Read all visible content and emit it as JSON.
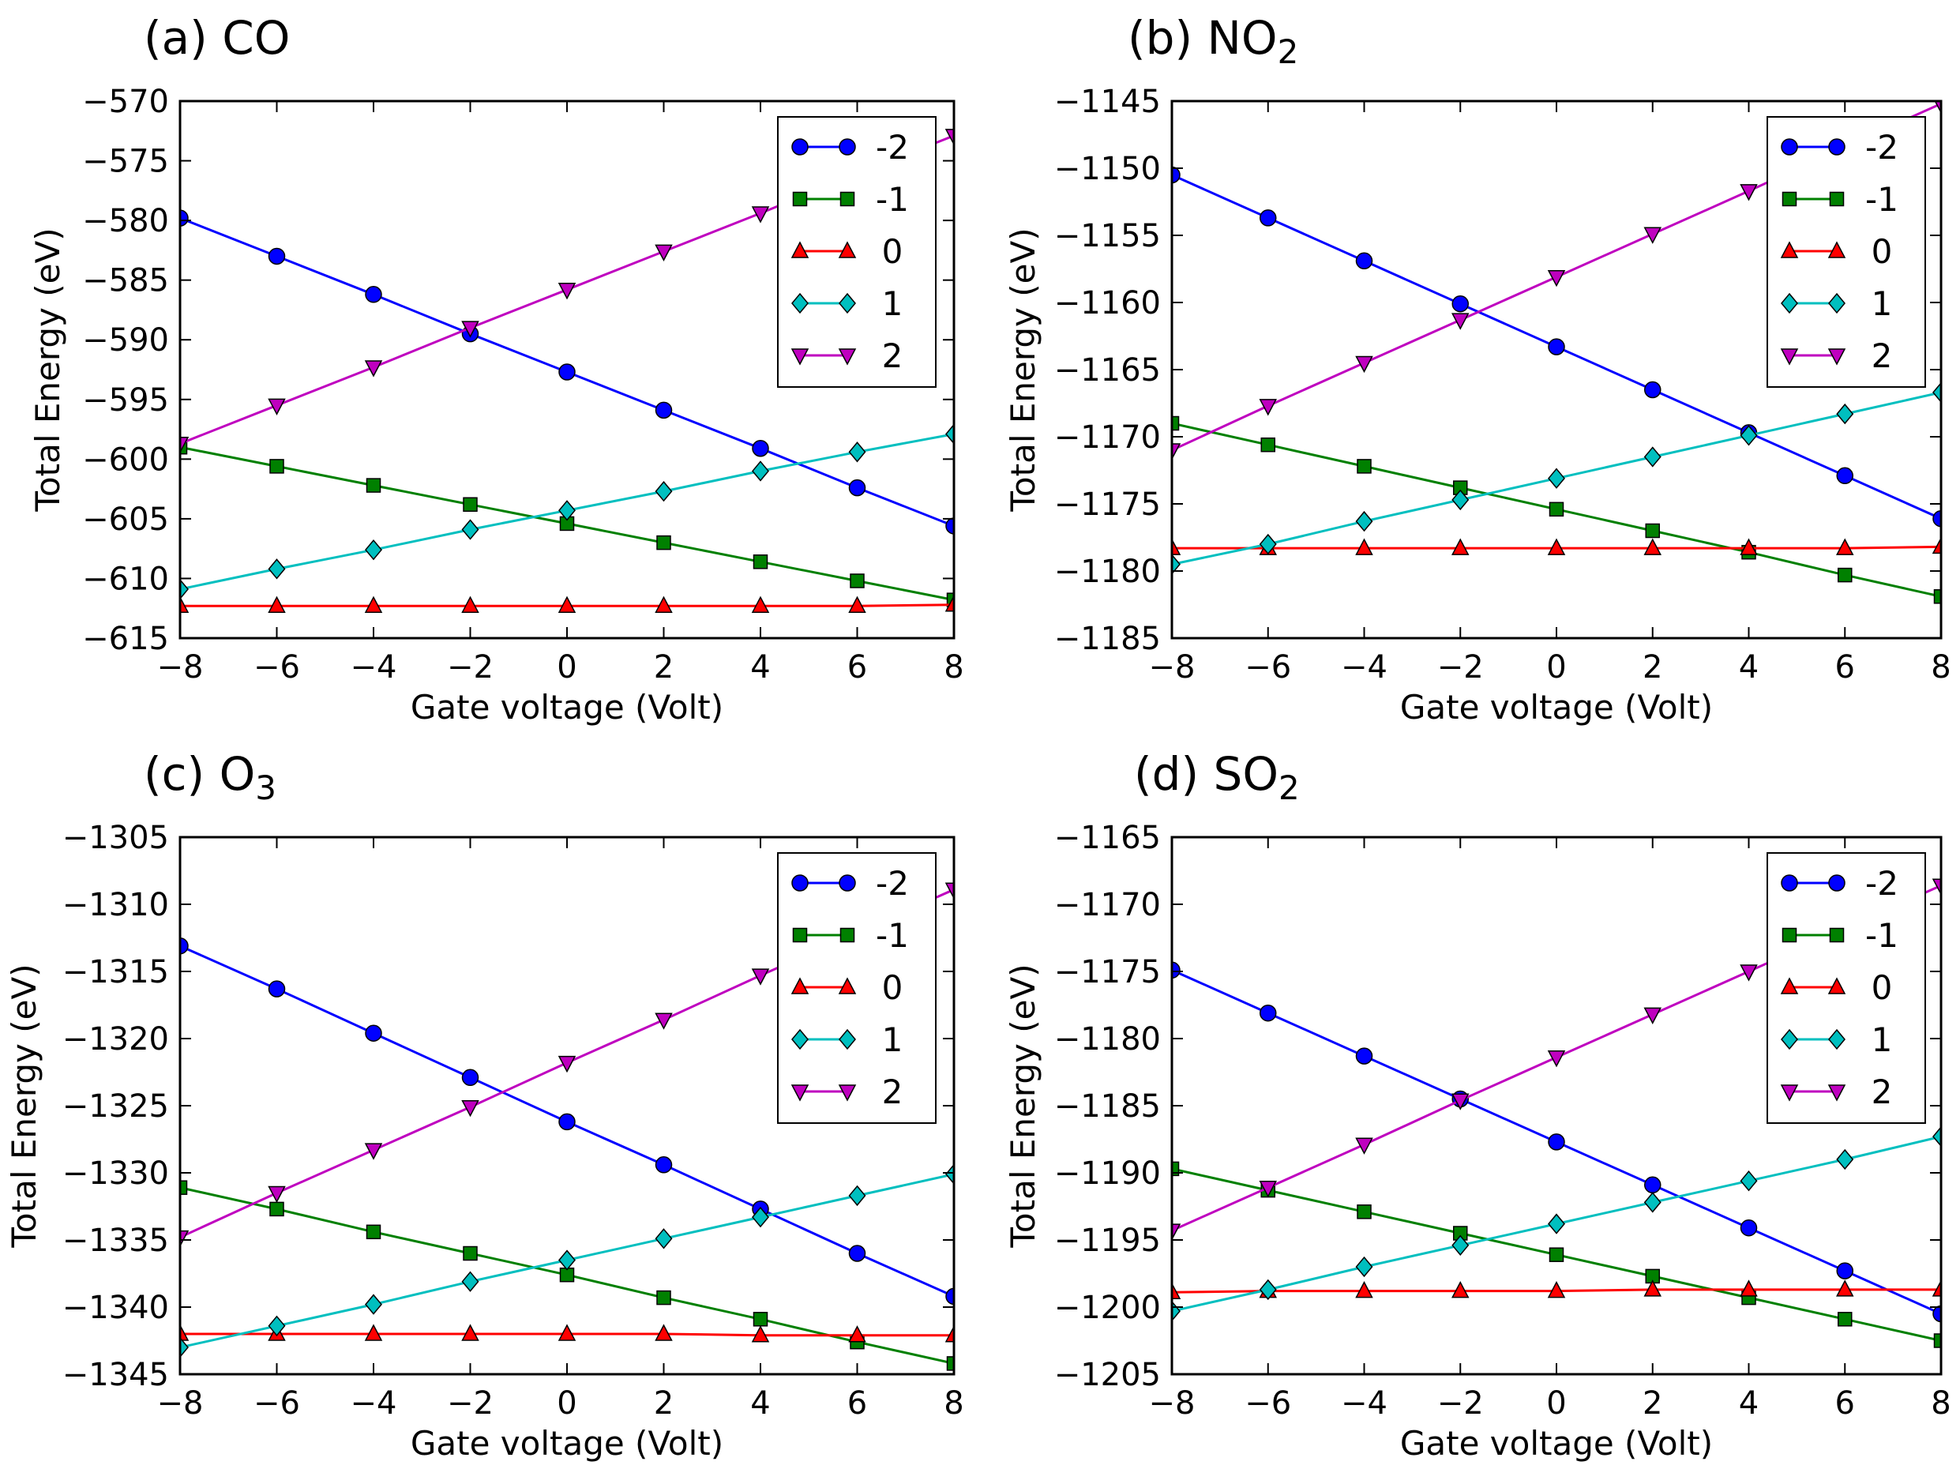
{
  "figure": {
    "x_values": [
      -8,
      -6,
      -4,
      -2,
      0,
      2,
      4,
      6,
      8
    ],
    "series_style": [
      {
        "name": "-2",
        "color": "#0000ff",
        "marker": "circle"
      },
      {
        "name": "-1",
        "color": "#008000",
        "marker": "square"
      },
      {
        "name": "0",
        "color": "#ff0000",
        "marker": "triangle-up"
      },
      {
        "name": "1",
        "color": "#00bfbf",
        "marker": "diamond"
      },
      {
        "name": "2",
        "color": "#bf00bf",
        "marker": "triangle-down"
      }
    ]
  },
  "chart_data": [
    {
      "id": "a",
      "type": "line",
      "title": "(a) CO",
      "title_main": "(a) CO",
      "title_sub": "",
      "xlabel": "Gate voltage (Volt)",
      "ylabel": "Total Energy (eV)",
      "xlim": [
        -8,
        8
      ],
      "ylim": [
        -615,
        -570
      ],
      "xticks": [
        -8,
        -6,
        -4,
        -2,
        0,
        2,
        4,
        6,
        8
      ],
      "yticks": [
        -570,
        -575,
        -580,
        -585,
        -590,
        -595,
        -600,
        -605,
        -610,
        -615
      ],
      "legend": "top-right",
      "x": [
        -8,
        -6,
        -4,
        -2,
        0,
        2,
        4,
        6,
        8
      ],
      "series": [
        {
          "name": "-2",
          "values": [
            -579.8,
            -583.0,
            -586.2,
            -589.5,
            -592.7,
            -595.9,
            -599.1,
            -602.4,
            -605.6
          ]
        },
        {
          "name": "-1",
          "values": [
            -599.0,
            -600.6,
            -602.2,
            -603.8,
            -605.4,
            -607.0,
            -608.6,
            -610.2,
            -611.8
          ]
        },
        {
          "name": "0",
          "values": [
            -612.3,
            -612.3,
            -612.3,
            -612.3,
            -612.3,
            -612.3,
            -612.3,
            -612.3,
            -612.2
          ]
        },
        {
          "name": "1",
          "values": [
            -610.9,
            -609.2,
            -607.6,
            -605.9,
            -604.3,
            -602.7,
            -601.0,
            -599.4,
            -597.9
          ]
        },
        {
          "name": "2",
          "values": [
            -598.7,
            -595.5,
            -592.3,
            -589.0,
            -585.8,
            -582.6,
            -579.4,
            -576.1,
            -572.9
          ]
        }
      ]
    },
    {
      "id": "b",
      "type": "line",
      "title": "(b) NO2",
      "title_main": "(b) NO",
      "title_sub": "2",
      "xlabel": "Gate voltage (Volt)",
      "ylabel": "Total Energy (eV)",
      "xlim": [
        -8,
        8
      ],
      "ylim": [
        -1185,
        -1145
      ],
      "xticks": [
        -8,
        -6,
        -4,
        -2,
        0,
        2,
        4,
        6,
        8
      ],
      "yticks": [
        -1145,
        -1150,
        -1155,
        -1160,
        -1165,
        -1170,
        -1175,
        -1180,
        -1185
      ],
      "legend": "top-right",
      "x": [
        -8,
        -6,
        -4,
        -2,
        0,
        2,
        4,
        6,
        8
      ],
      "series": [
        {
          "name": "-2",
          "values": [
            -1150.5,
            -1153.7,
            -1156.9,
            -1160.1,
            -1163.3,
            -1166.5,
            -1169.7,
            -1172.9,
            -1176.1
          ]
        },
        {
          "name": "-1",
          "values": [
            -1169.0,
            -1170.6,
            -1172.2,
            -1173.8,
            -1175.4,
            -1177.0,
            -1178.6,
            -1180.3,
            -1181.9
          ]
        },
        {
          "name": "0",
          "values": [
            -1178.3,
            -1178.3,
            -1178.3,
            -1178.3,
            -1178.3,
            -1178.3,
            -1178.3,
            -1178.3,
            -1178.2
          ]
        },
        {
          "name": "1",
          "values": [
            -1179.5,
            -1178.0,
            -1176.3,
            -1174.7,
            -1173.1,
            -1171.5,
            -1169.9,
            -1168.3,
            -1166.7
          ]
        },
        {
          "name": "2",
          "values": [
            -1171.0,
            -1167.7,
            -1164.5,
            -1161.3,
            -1158.1,
            -1154.9,
            -1151.7,
            -1148.4,
            -1145.2
          ]
        }
      ]
    },
    {
      "id": "c",
      "type": "line",
      "title": "(c) O3",
      "title_main": "(c) O",
      "title_sub": "3",
      "xlabel": "Gate voltage (Volt)",
      "ylabel": "Total Energy (eV)",
      "xlim": [
        -8,
        8
      ],
      "ylim": [
        -1345,
        -1305
      ],
      "xticks": [
        -8,
        -6,
        -4,
        -2,
        0,
        2,
        4,
        6,
        8
      ],
      "yticks": [
        -1305,
        -1310,
        -1315,
        -1320,
        -1325,
        -1330,
        -1335,
        -1340,
        -1345
      ],
      "legend": "top-right",
      "x": [
        -8,
        -6,
        -4,
        -2,
        0,
        2,
        4,
        6,
        8
      ],
      "series": [
        {
          "name": "-2",
          "values": [
            -1313.1,
            -1316.3,
            -1319.6,
            -1322.9,
            -1326.2,
            -1329.4,
            -1332.7,
            -1336.0,
            -1339.2
          ]
        },
        {
          "name": "-1",
          "values": [
            -1331.1,
            -1332.7,
            -1334.4,
            -1336.0,
            -1337.6,
            -1339.3,
            -1340.9,
            -1342.6,
            -1344.2
          ]
        },
        {
          "name": "0",
          "values": [
            -1342.0,
            -1342.0,
            -1342.0,
            -1342.0,
            -1342.0,
            -1342.0,
            -1342.1,
            -1342.1,
            -1342.1
          ]
        },
        {
          "name": "1",
          "values": [
            -1343.0,
            -1341.4,
            -1339.8,
            -1338.1,
            -1336.5,
            -1334.9,
            -1333.3,
            -1331.7,
            -1330.1
          ]
        },
        {
          "name": "2",
          "values": [
            -1334.8,
            -1331.5,
            -1328.3,
            -1325.1,
            -1321.8,
            -1318.6,
            -1315.3,
            -1312.1,
            -1308.9
          ]
        }
      ]
    },
    {
      "id": "d",
      "type": "line",
      "title": "(d) SO2",
      "title_main": "(d) SO",
      "title_sub": "2",
      "xlabel": "Gate voltage (Volt)",
      "ylabel": "Total Energy (eV)",
      "xlim": [
        -8,
        8
      ],
      "ylim": [
        -1205,
        -1165
      ],
      "xticks": [
        -8,
        -6,
        -4,
        -2,
        0,
        2,
        4,
        6,
        8
      ],
      "yticks": [
        -1165,
        -1170,
        -1175,
        -1180,
        -1185,
        -1190,
        -1195,
        -1200,
        -1205
      ],
      "legend": "top-right",
      "x": [
        -8,
        -6,
        -4,
        -2,
        0,
        2,
        4,
        6,
        8
      ],
      "series": [
        {
          "name": "-2",
          "values": [
            -1174.9,
            -1178.1,
            -1181.3,
            -1184.5,
            -1187.7,
            -1190.9,
            -1194.1,
            -1197.3,
            -1200.5
          ]
        },
        {
          "name": "-1",
          "values": [
            -1189.7,
            -1191.3,
            -1192.9,
            -1194.5,
            -1196.1,
            -1197.7,
            -1199.3,
            -1200.9,
            -1202.5
          ]
        },
        {
          "name": "0",
          "values": [
            -1198.9,
            -1198.8,
            -1198.8,
            -1198.8,
            -1198.8,
            -1198.7,
            -1198.7,
            -1198.7,
            -1198.7
          ]
        },
        {
          "name": "1",
          "values": [
            -1200.3,
            -1198.7,
            -1197.0,
            -1195.4,
            -1193.8,
            -1192.2,
            -1190.6,
            -1189.0,
            -1187.3
          ]
        },
        {
          "name": "2",
          "values": [
            -1194.3,
            -1191.1,
            -1187.9,
            -1184.6,
            -1181.4,
            -1178.2,
            -1175.0,
            -1171.8,
            -1168.6
          ]
        }
      ]
    }
  ]
}
